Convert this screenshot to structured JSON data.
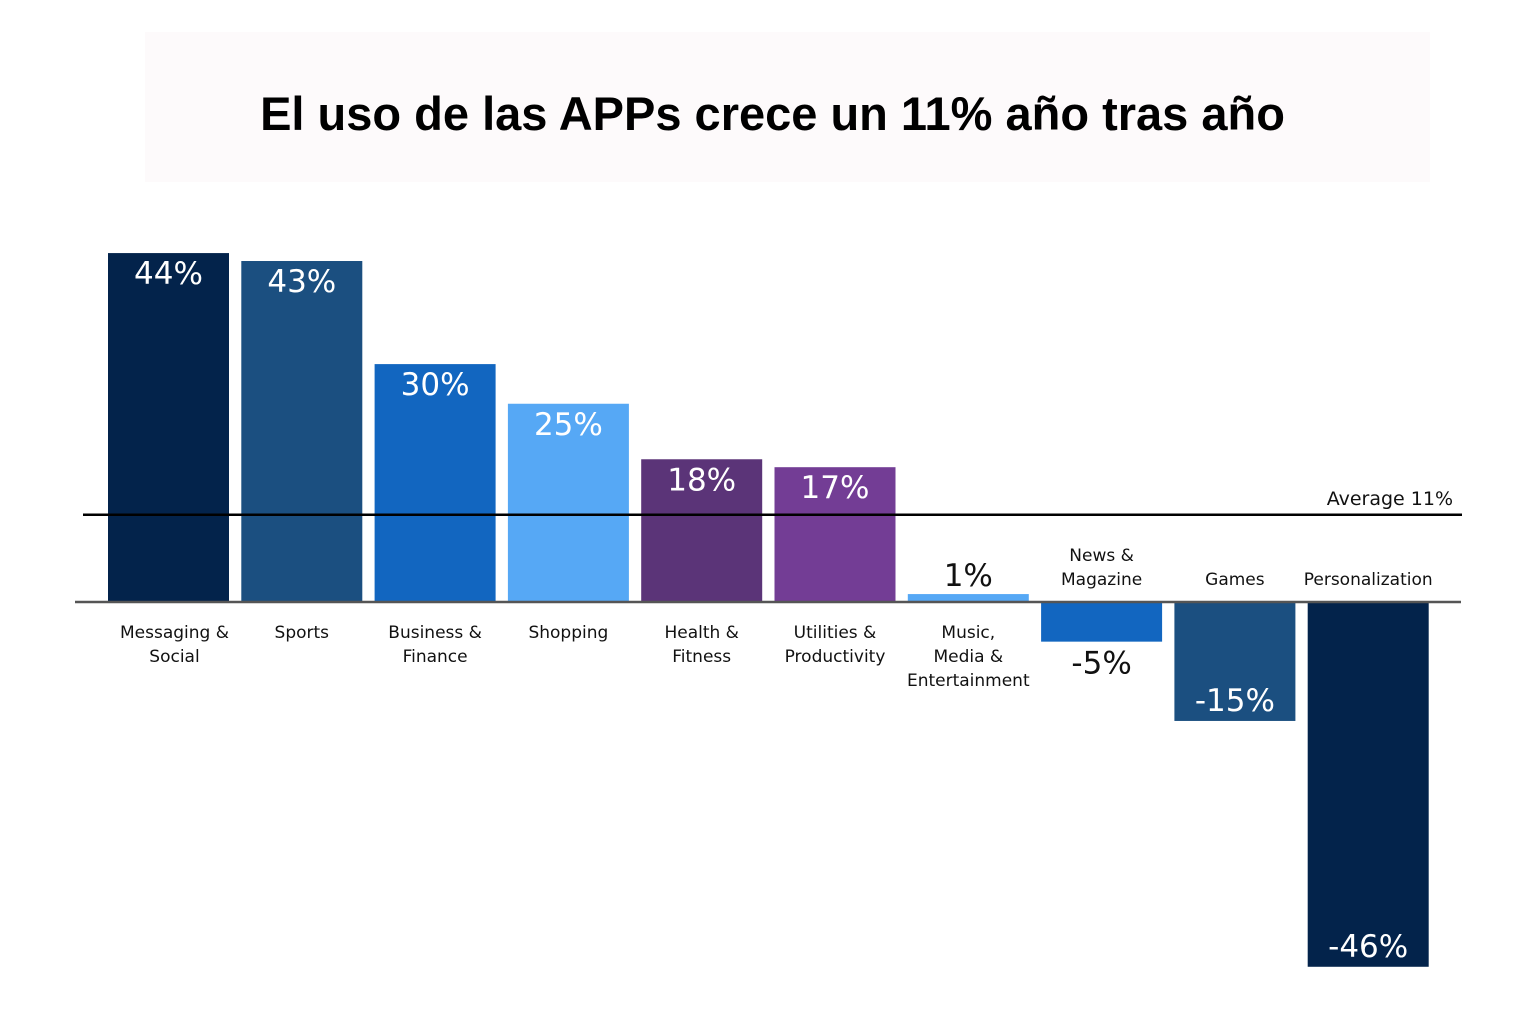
{
  "title": "El uso de las APPs crece un 11% año tras año",
  "chart_data": {
    "type": "bar",
    "title": "El uso de las APPs crece un 11% año tras año",
    "xlabel": "",
    "ylabel": "",
    "grid": false,
    "categories": [
      [
        "Messaging &",
        "Social"
      ],
      [
        "Sports"
      ],
      [
        "Business &",
        "Finance"
      ],
      [
        "Shopping"
      ],
      [
        "Health &",
        "Fitness"
      ],
      [
        "Utilities &",
        "Productivity"
      ],
      [
        "Music,",
        "Media &",
        "Entertainment"
      ],
      [
        "News &",
        "Magazine"
      ],
      [
        "Games"
      ],
      [
        "Personalization"
      ]
    ],
    "values": [
      44,
      43,
      30,
      25,
      18,
      17,
      1,
      -5,
      -15,
      -46
    ],
    "value_labels": [
      "44%",
      "43%",
      "30%",
      "25%",
      "18%",
      "17%",
      "1%",
      "-5%",
      "-15%",
      "-46%"
    ],
    "colors": [
      "#03234b",
      "#1b4f80",
      "#1266c0",
      "#56a8f5",
      "#5b3478",
      "#733d95",
      "#56a8f5",
      "#1266c0",
      "#1b4f80",
      "#03234b"
    ],
    "reference_line": {
      "label": "Average 11%",
      "value": 11
    },
    "ylim": [
      -46,
      44
    ]
  }
}
